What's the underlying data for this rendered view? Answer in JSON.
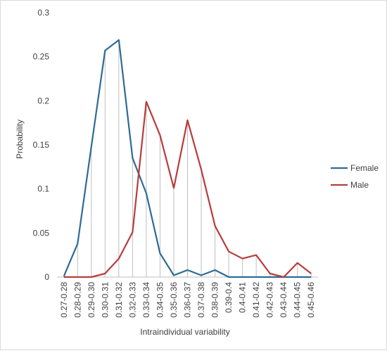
{
  "chart_data": {
    "type": "line",
    "xlabel": "Intraindividual variability",
    "ylabel": "Probability",
    "ylim": [
      0,
      0.3
    ],
    "yticks": [
      0,
      0.05,
      0.1,
      0.15,
      0.2,
      0.25,
      0.3
    ],
    "ytick_labels": [
      "0",
      "0.05",
      "0.1",
      "0.15",
      "0.2",
      "0.25",
      "0.3"
    ],
    "grid": "vertical drop lines at each category",
    "legend_position": "right",
    "categories": [
      "0.27-0.28",
      "0.28-0.29",
      "0.29-0.30",
      "0.30-0.31",
      "0.31-0.32",
      "0.32-0.33",
      "0.33-0.34",
      "0.34-0.35",
      "0.35-0.36",
      "0.36-0.37",
      "0.37-0.38",
      "0.38-0.39",
      "0.39-0.4",
      "0.4-0.41",
      "0.41-0.42",
      "0.42-0.43",
      "0.43-0.44",
      "0.44-0.45",
      "0.45-0.46"
    ],
    "series": [
      {
        "name": "Female",
        "color": "#2e6b96",
        "values": [
          0.001,
          0.038,
          0.148,
          0.257,
          0.269,
          0.135,
          0.095,
          0.027,
          0.002,
          0.008,
          0.002,
          0.008,
          0,
          0,
          0,
          0,
          0,
          0,
          0
        ]
      },
      {
        "name": "Male",
        "color": "#b83c3c",
        "values": [
          0,
          0,
          0,
          0.004,
          0.021,
          0.051,
          0.199,
          0.161,
          0.101,
          0.178,
          0.122,
          0.058,
          0.029,
          0.021,
          0.025,
          0.004,
          0,
          0.016,
          0.004
        ]
      }
    ]
  }
}
